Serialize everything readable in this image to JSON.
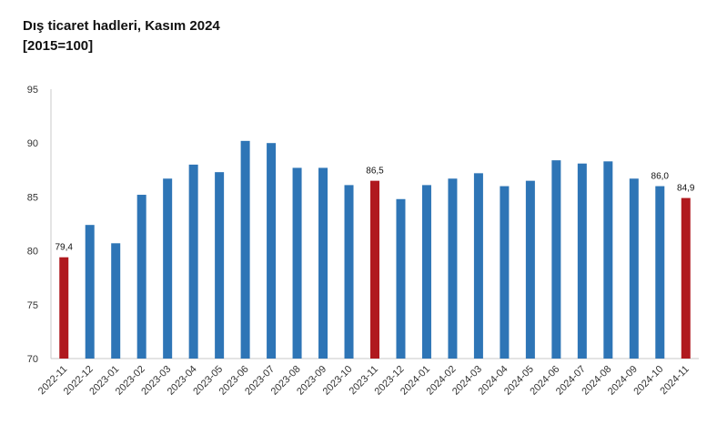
{
  "title": "Dış ticaret hadleri, Kasım 2024",
  "subtitle": "[2015=100]",
  "chart_data": {
    "type": "bar",
    "title": "Dış ticaret hadleri, Kasım 2024",
    "subtitle": "[2015=100]",
    "xlabel": "",
    "ylabel": "",
    "ylim": [
      70,
      95
    ],
    "yticks": [
      70,
      75,
      80,
      85,
      90,
      95
    ],
    "grid": false,
    "legend": "none",
    "categories": [
      "2022-11",
      "2022-12",
      "2023-01",
      "2023-02",
      "2023-03",
      "2023-04",
      "2023-05",
      "2023-06",
      "2023-07",
      "2023-08",
      "2023-09",
      "2023-10",
      "2023-11",
      "2023-12",
      "2024-01",
      "2024-02",
      "2024-03",
      "2024-04",
      "2024-05",
      "2024-06",
      "2024-07",
      "2024-08",
      "2024-09",
      "2024-10",
      "2024-11"
    ],
    "values": [
      79.4,
      82.4,
      80.7,
      85.2,
      86.7,
      88.0,
      87.3,
      90.2,
      90.0,
      87.7,
      87.7,
      86.1,
      86.5,
      84.8,
      86.1,
      86.7,
      87.2,
      86.0,
      86.5,
      88.4,
      88.1,
      88.3,
      86.7,
      86.0,
      84.9
    ],
    "highlighted": [
      "2022-11",
      "2023-11",
      "2024-11"
    ],
    "data_labels": [
      {
        "category": "2022-11",
        "text": "79,4"
      },
      {
        "category": "2023-11",
        "text": "86,5"
      },
      {
        "category": "2024-10",
        "text": "86,0"
      },
      {
        "category": "2024-11",
        "text": "84,9"
      }
    ],
    "colors": {
      "default": "#2e75b6",
      "highlight": "#b0191e"
    }
  }
}
